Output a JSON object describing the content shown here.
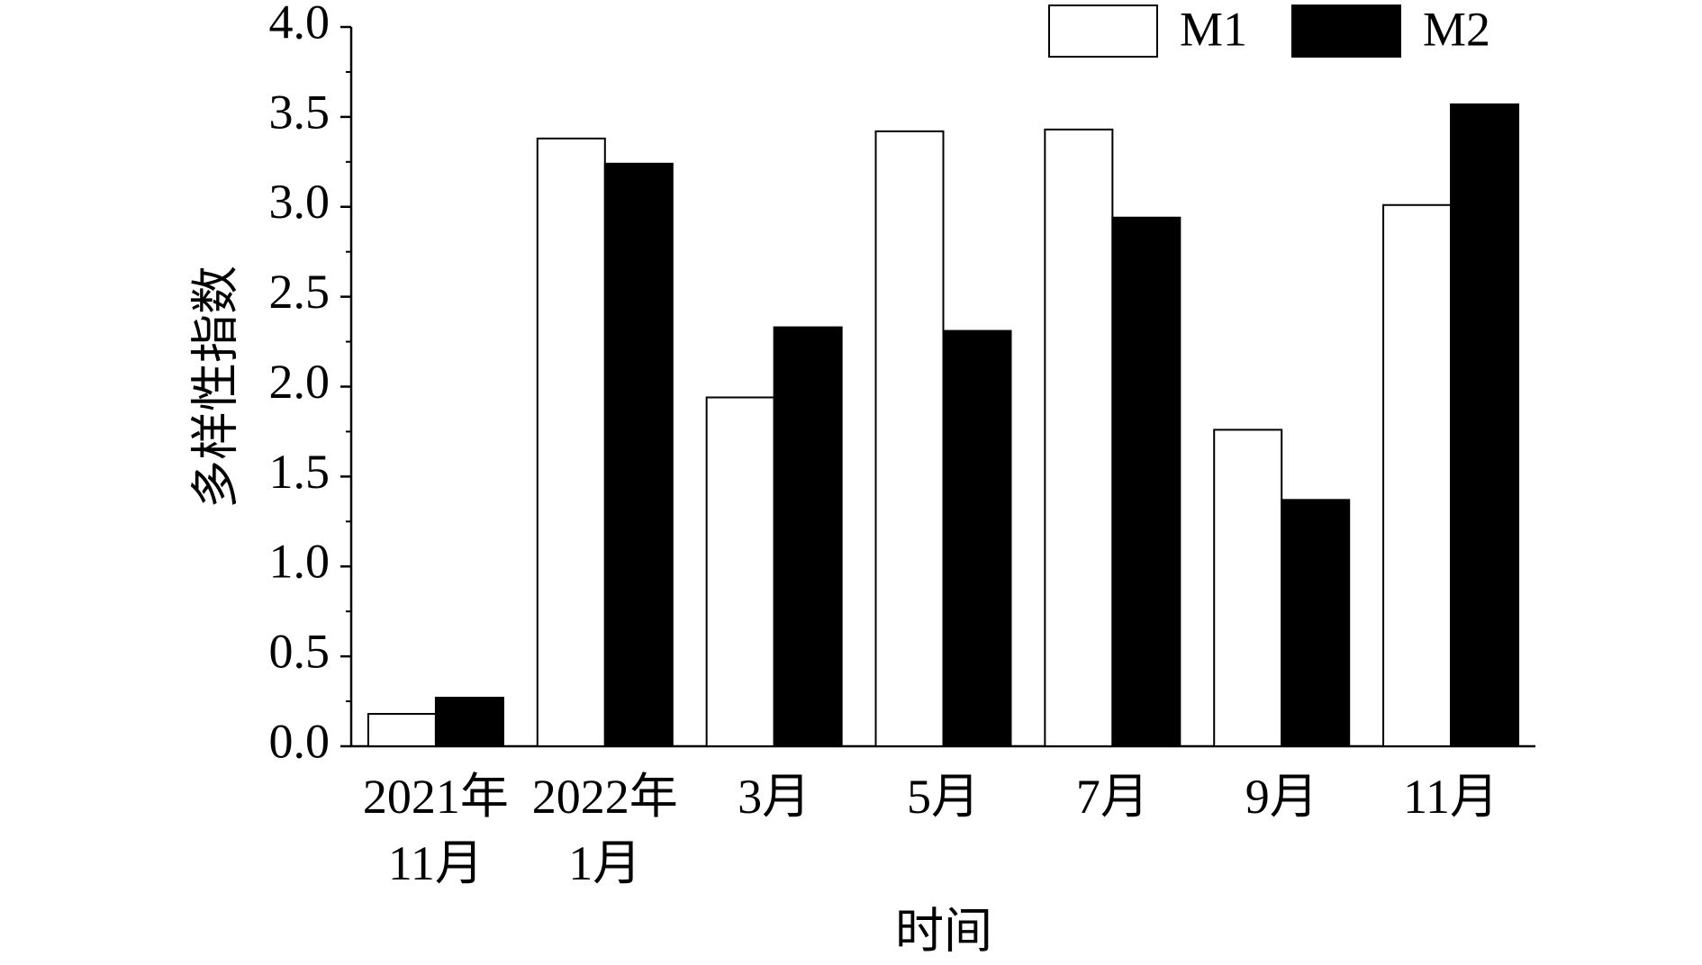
{
  "chart_data": {
    "type": "bar",
    "x_label": "时间",
    "y_label": "多样性指数",
    "categories": [
      "2021年\n11月",
      "2022年\n1月",
      "3月",
      "5月",
      "7月",
      "9月",
      "11月"
    ],
    "series": [
      {
        "name": "M1",
        "color": "#ffffff",
        "values": [
          0.18,
          3.38,
          1.94,
          3.42,
          3.43,
          1.76,
          3.01
        ]
      },
      {
        "name": "M2",
        "color": "#000000",
        "values": [
          0.27,
          3.24,
          2.33,
          2.31,
          2.94,
          1.37,
          3.57
        ]
      }
    ],
    "ylim": [
      0,
      4
    ],
    "yticks": [
      {
        "value": 0,
        "label": "0.0"
      },
      {
        "value": 0.5,
        "label": "0.5"
      },
      {
        "value": 1,
        "label": "1.0"
      },
      {
        "value": 1.5,
        "label": "1.5"
      },
      {
        "value": 2,
        "label": "2.0"
      },
      {
        "value": 2.5,
        "label": "2.5"
      },
      {
        "value": 3,
        "label": "3.0"
      },
      {
        "value": 3.5,
        "label": "3.5"
      },
      {
        "value": 4,
        "label": "4.0"
      }
    ],
    "grid": false,
    "legend": "top-right"
  }
}
